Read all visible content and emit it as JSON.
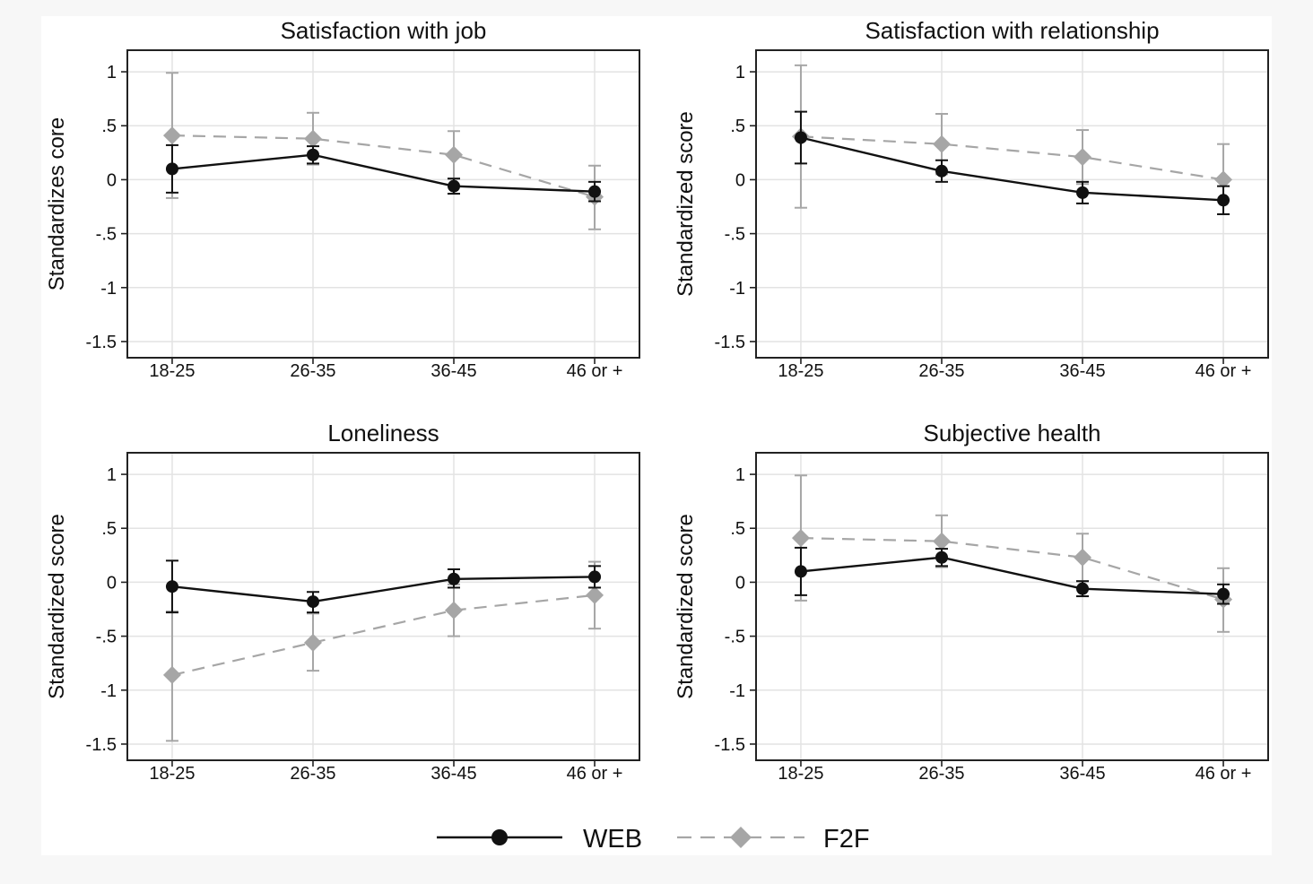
{
  "colors": {
    "web": "#111111",
    "f2f": "#a6a6a6",
    "grid": "#e3e3e3",
    "frame": "#222222",
    "background": "#ffffff",
    "outer": "#f7f7f7"
  },
  "legend": {
    "items": [
      {
        "label": "WEB",
        "style": "solid-circle"
      },
      {
        "label": "F2F",
        "style": "dashed-diamond"
      }
    ]
  },
  "chart_data": [
    {
      "type": "line",
      "title": "Satisfaction with job",
      "ylabel": "Standardizes core",
      "xlabel": "",
      "categories": [
        "18-25",
        "26-35",
        "36-45",
        "46 or +"
      ],
      "ylim": [
        -1.65,
        1.2
      ],
      "yticks": [
        1,
        0.5,
        0,
        -0.5,
        -1,
        -1.5
      ],
      "ytick_labels": [
        "1",
        ".5",
        "0",
        "-.5",
        "-1",
        "-1.5"
      ],
      "grid": true,
      "series": [
        {
          "name": "WEB",
          "values": [
            0.1,
            0.23,
            -0.06,
            -0.11
          ],
          "ci_low": [
            -0.12,
            0.15,
            -0.13,
            -0.2
          ],
          "ci_high": [
            0.32,
            0.31,
            0.01,
            -0.02
          ]
        },
        {
          "name": "F2F",
          "values": [
            0.41,
            0.38,
            0.23,
            -0.16
          ],
          "ci_low": [
            -0.17,
            0.14,
            0.01,
            -0.46
          ],
          "ci_high": [
            0.99,
            0.62,
            0.45,
            0.13
          ]
        }
      ]
    },
    {
      "type": "line",
      "title": "Satisfaction with relationship",
      "ylabel": "Standardized score",
      "xlabel": "",
      "categories": [
        "18-25",
        "26-35",
        "36-45",
        "46 or +"
      ],
      "ylim": [
        -1.65,
        1.2
      ],
      "yticks": [
        1,
        0.5,
        0,
        -0.5,
        -1,
        -1.5
      ],
      "ytick_labels": [
        "1",
        ".5",
        "0",
        "-.5",
        "-1",
        "-1.5"
      ],
      "grid": true,
      "series": [
        {
          "name": "WEB",
          "values": [
            0.39,
            0.08,
            -0.12,
            -0.19
          ],
          "ci_low": [
            0.15,
            -0.02,
            -0.22,
            -0.32
          ],
          "ci_high": [
            0.63,
            0.18,
            -0.02,
            -0.06
          ]
        },
        {
          "name": "F2F",
          "values": [
            0.4,
            0.33,
            0.21,
            0.0
          ],
          "ci_low": [
            -0.26,
            0.05,
            -0.04,
            -0.32
          ],
          "ci_high": [
            1.06,
            0.61,
            0.46,
            0.33
          ]
        }
      ]
    },
    {
      "type": "line",
      "title": "Loneliness",
      "ylabel": "Standardized score",
      "xlabel": "",
      "categories": [
        "18-25",
        "26-35",
        "36-45",
        "46 or +"
      ],
      "ylim": [
        -1.65,
        1.2
      ],
      "yticks": [
        1,
        0.5,
        0,
        -0.5,
        -1,
        -1.5
      ],
      "ytick_labels": [
        "1",
        ".5",
        "0",
        "-.5",
        "-1",
        "-1.5"
      ],
      "grid": true,
      "series": [
        {
          "name": "WEB",
          "values": [
            -0.04,
            -0.18,
            0.03,
            0.05
          ],
          "ci_low": [
            -0.28,
            -0.28,
            -0.05,
            -0.05
          ],
          "ci_high": [
            0.2,
            -0.09,
            0.12,
            0.15
          ]
        },
        {
          "name": "F2F",
          "values": [
            -0.86,
            -0.56,
            -0.26,
            -0.12
          ],
          "ci_low": [
            -1.47,
            -0.82,
            -0.5,
            -0.43
          ],
          "ci_high": [
            -0.27,
            -0.29,
            -0.02,
            0.19
          ]
        }
      ]
    },
    {
      "type": "line",
      "title": "Subjective health",
      "ylabel": "Standardized score",
      "xlabel": "",
      "categories": [
        "18-25",
        "26-35",
        "36-45",
        "46 or +"
      ],
      "ylim": [
        -1.65,
        1.2
      ],
      "yticks": [
        1,
        0.5,
        0,
        -0.5,
        -1,
        -1.5
      ],
      "ytick_labels": [
        "1",
        ".5",
        "0",
        "-.5",
        "-1",
        "-1.5"
      ],
      "grid": true,
      "series": [
        {
          "name": "WEB",
          "values": [
            0.1,
            0.23,
            -0.06,
            -0.11
          ],
          "ci_low": [
            -0.12,
            0.15,
            -0.13,
            -0.2
          ],
          "ci_high": [
            0.32,
            0.31,
            0.01,
            -0.02
          ]
        },
        {
          "name": "F2F",
          "values": [
            0.41,
            0.38,
            0.23,
            -0.16
          ],
          "ci_low": [
            -0.17,
            0.14,
            0.01,
            -0.46
          ],
          "ci_high": [
            0.99,
            0.62,
            0.45,
            0.13
          ]
        }
      ]
    }
  ]
}
